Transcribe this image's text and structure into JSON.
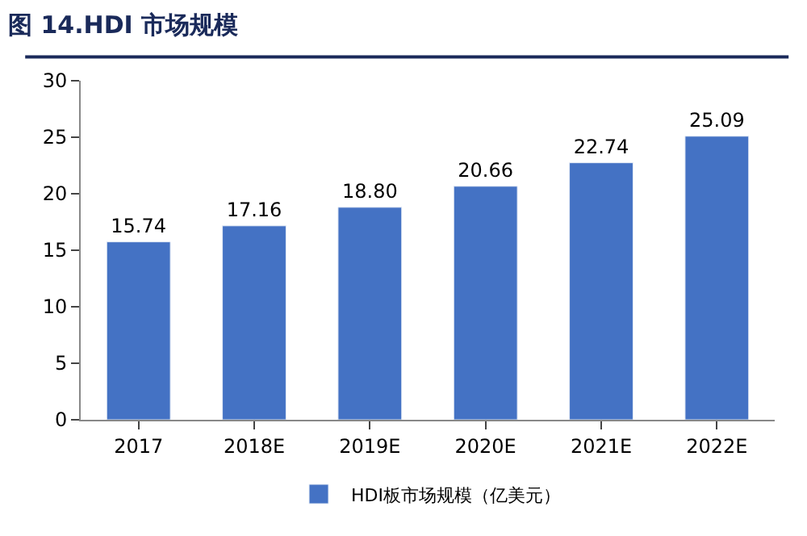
{
  "chart_data": {
    "type": "bar",
    "title": "图 14.HDI 市场规模",
    "categories": [
      "2017",
      "2018E",
      "2019E",
      "2020E",
      "2021E",
      "2022E"
    ],
    "series": [
      {
        "name": "HDI板市场规模（亿美元）",
        "color": "#4472c4",
        "values": [
          15.74,
          17.16,
          18.8,
          20.66,
          22.74,
          25.09
        ]
      }
    ],
    "value_labels": [
      "15.74",
      "17.16",
      "18.80",
      "20.66",
      "22.74",
      "25.09"
    ],
    "ylim": [
      0,
      30
    ],
    "yticks": [
      0,
      5,
      10,
      15,
      20,
      25,
      30
    ],
    "legend": "bottom"
  }
}
